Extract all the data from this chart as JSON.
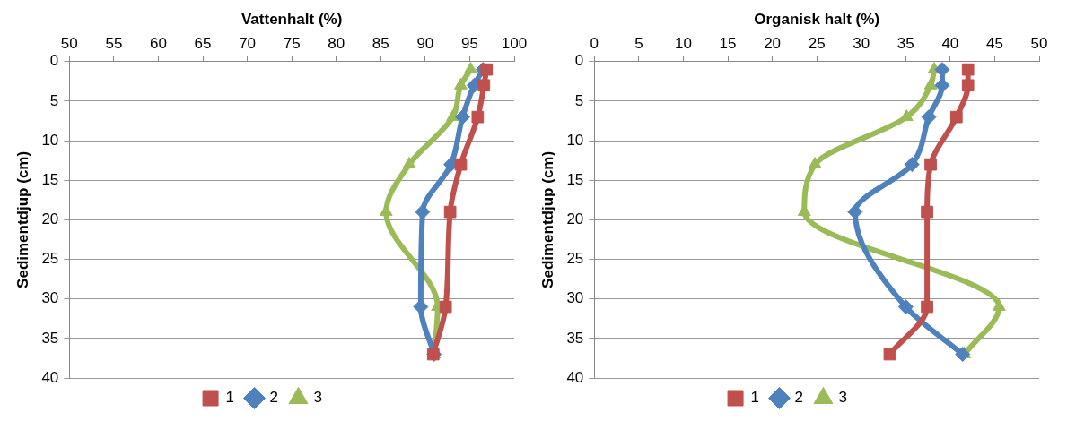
{
  "chart_data": [
    {
      "type": "line",
      "title": null,
      "xlabel": "Vattenhalt (%)",
      "ylabel": "Sedimentdjup (cm)",
      "xlim": [
        50,
        100
      ],
      "xticks": [
        50,
        55,
        60,
        65,
        70,
        75,
        80,
        85,
        90,
        95,
        100
      ],
      "ylim": [
        40,
        0
      ],
      "yticks": [
        0,
        5,
        10,
        15,
        20,
        25,
        30,
        35,
        40
      ],
      "grid": "y",
      "legend": "bottom",
      "series": [
        {
          "name": "1",
          "color": "#c0504d",
          "marker": "square",
          "x": [
            96.9,
            96.6,
            95.9,
            94.0,
            92.8,
            92.3,
            90.9
          ],
          "values": [
            1,
            3,
            7,
            13,
            19,
            31,
            37
          ]
        },
        {
          "name": "2",
          "color": "#4f81bd",
          "marker": "diamond",
          "x": [
            96.5,
            95.5,
            94.2,
            92.9,
            89.7,
            89.5,
            91.0
          ],
          "values": [
            1,
            3,
            7,
            13,
            19,
            31,
            37
          ]
        },
        {
          "name": "3",
          "color": "#9bbb59",
          "marker": "triangle",
          "x": [
            95.1,
            94.0,
            93.1,
            88.2,
            85.6,
            91.4,
            91.0
          ],
          "values": [
            1,
            3,
            7,
            13,
            19,
            31,
            37
          ]
        }
      ]
    },
    {
      "type": "line",
      "title": null,
      "xlabel": "Organisk halt (%)",
      "ylabel": "Sedimentdjup (cm)",
      "xlim": [
        0,
        50
      ],
      "xticks": [
        0,
        5,
        10,
        15,
        20,
        25,
        30,
        35,
        40,
        45,
        50
      ],
      "ylim": [
        40,
        0
      ],
      "yticks": [
        0,
        5,
        10,
        15,
        20,
        25,
        30,
        35,
        40
      ],
      "grid": "y",
      "legend": "bottom",
      "series": [
        {
          "name": "1",
          "color": "#c0504d",
          "marker": "square",
          "x": [
            42.0,
            42.0,
            40.7,
            37.8,
            37.4,
            37.4,
            33.2
          ],
          "values": [
            1,
            3,
            7,
            13,
            19,
            31,
            37
          ]
        },
        {
          "name": "2",
          "color": "#4f81bd",
          "marker": "diamond",
          "x": [
            39.1,
            39.1,
            37.6,
            35.7,
            29.3,
            35.0,
            41.4
          ],
          "values": [
            1,
            3,
            7,
            13,
            19,
            31,
            37
          ]
        },
        {
          "name": "3",
          "color": "#9bbb59",
          "marker": "triangle",
          "x": [
            38.2,
            37.8,
            35.1,
            24.8,
            23.6,
            45.5,
            41.6
          ],
          "values": [
            1,
            3,
            7,
            13,
            19,
            31,
            37
          ]
        }
      ]
    }
  ]
}
